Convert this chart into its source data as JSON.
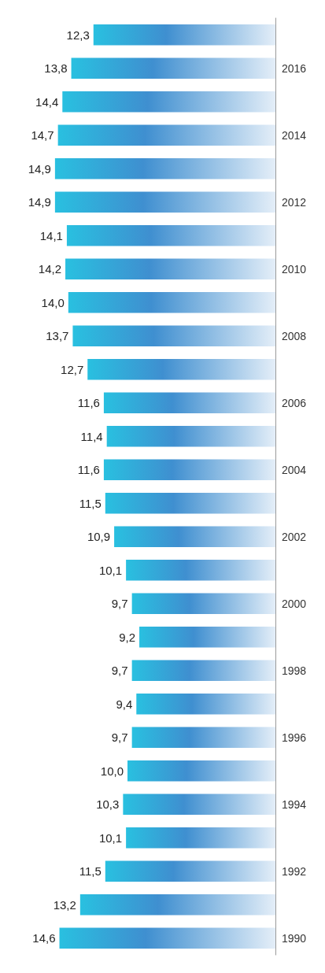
{
  "chart_data": {
    "type": "bar",
    "orientation": "horizontal",
    "color": "#3f8fd0",
    "categories": [
      null,
      "2016",
      null,
      "2014",
      null,
      "2012",
      null,
      "2010",
      null,
      "2008",
      null,
      "2006",
      null,
      "2004",
      null,
      "2002",
      null,
      "2000",
      null,
      "1998",
      null,
      "1996",
      null,
      "1994",
      null,
      "1992",
      null,
      "1990"
    ],
    "values": [
      12.3,
      13.8,
      14.4,
      14.7,
      14.9,
      14.9,
      14.1,
      14.2,
      14.0,
      13.7,
      12.7,
      11.6,
      11.4,
      11.6,
      11.5,
      10.9,
      10.1,
      9.7,
      9.2,
      9.7,
      9.4,
      9.7,
      10.0,
      10.3,
      10.1,
      11.5,
      13.2,
      14.6
    ],
    "value_labels": [
      "12,3",
      "13,8",
      "14,4",
      "14,7",
      "14,9",
      "14,9",
      "14,1",
      "14,2",
      "14,0",
      "13,7",
      "12,7",
      "11,6",
      "11,4",
      "11,6",
      "11,5",
      "10,9",
      "10,1",
      "9,7",
      "9,2",
      "9,7",
      "9,4",
      "9,7",
      "10,0",
      "10,3",
      "10,1",
      "11,5",
      "13,2",
      "14,6"
    ]
  }
}
